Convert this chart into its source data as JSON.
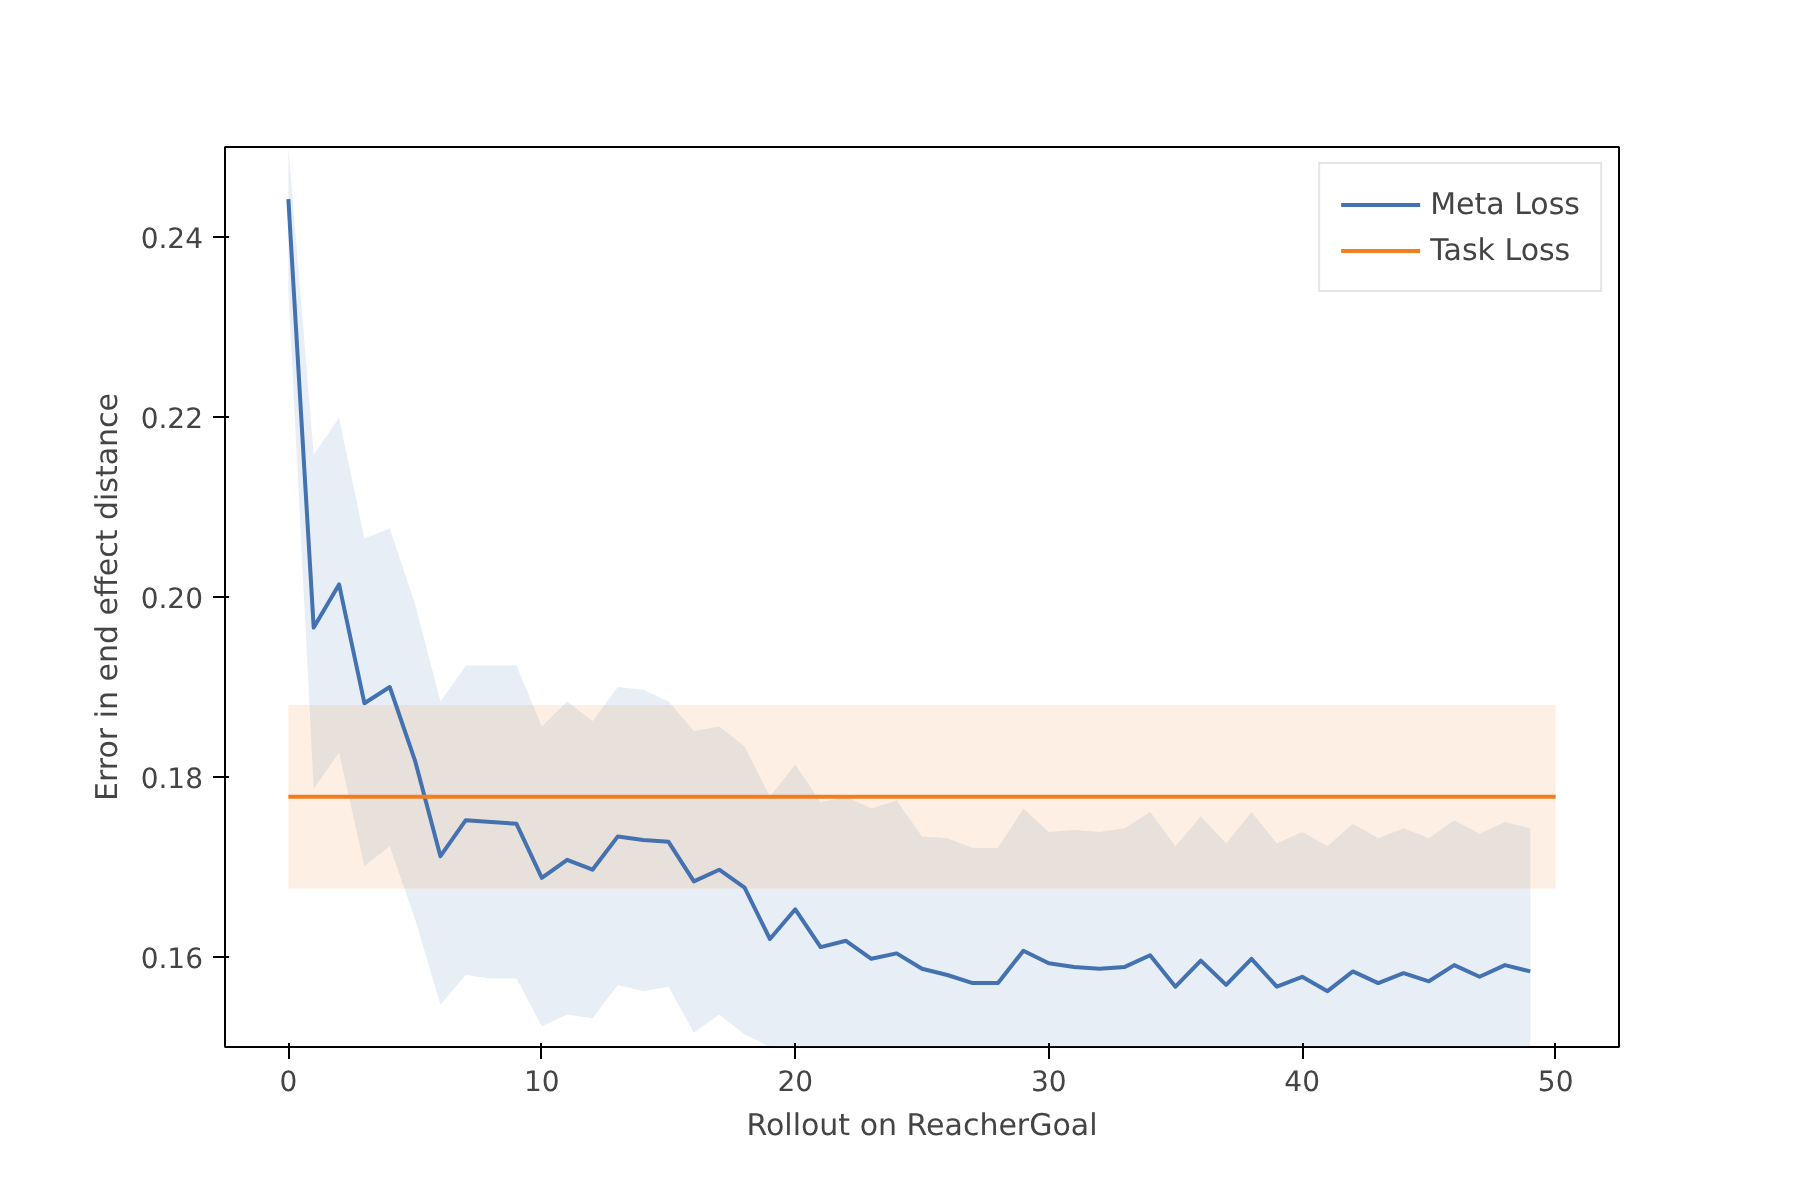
{
  "chart_data": {
    "type": "line",
    "xlabel": "Rollout on ReacherGoal",
    "ylabel": "Error in end effect distance",
    "xlim": [
      -2.5,
      52.5
    ],
    "xticks": [
      0,
      10,
      20,
      30,
      40,
      50
    ],
    "ylim": [
      0.15,
      0.25
    ],
    "yticks": [
      0.16,
      0.18,
      {
        "value": 0.2,
        "label": "0.20"
      },
      0.22,
      0.24
    ],
    "grid": false,
    "legend": "top right",
    "line_style": "solid",
    "marker": "none",
    "series": [
      {
        "name": "Meta Loss",
        "color": "#4471b0",
        "x": [
          0,
          1,
          2,
          3,
          4,
          5,
          6,
          7,
          8,
          9,
          10,
          11,
          12,
          13,
          14,
          15,
          16,
          17,
          18,
          19,
          20,
          21,
          22,
          23,
          24,
          25,
          26,
          27,
          28,
          29,
          30,
          31,
          32,
          33,
          34,
          35,
          36,
          37,
          38,
          39,
          40,
          41,
          42,
          43,
          44,
          45,
          46,
          47,
          48,
          49
        ],
        "values": [
          0.2442,
          0.1966,
          0.2014,
          0.1882,
          0.19,
          0.1818,
          0.1712,
          0.1752,
          0.175,
          0.1748,
          0.1688,
          0.1708,
          0.1697,
          0.1734,
          0.173,
          0.1728,
          0.1684,
          0.1697,
          0.1677,
          0.162,
          0.1653,
          0.1611,
          0.1618,
          0.1598,
          0.1604,
          0.1587,
          0.158,
          0.1571,
          0.1571,
          0.1607,
          0.1593,
          0.1589,
          0.1587,
          0.1589,
          0.1602,
          0.1567,
          0.1596,
          0.1569,
          0.1598,
          0.1567,
          0.1578,
          0.1562,
          0.1584,
          0.1571,
          0.1582,
          0.1573,
          0.1591,
          0.1578,
          0.1591,
          0.1584
        ],
        "upper": [
          0.25,
          0.2158,
          0.2199,
          0.2065,
          0.2076,
          0.1992,
          0.1884,
          0.1924,
          0.1924,
          0.1924,
          0.1856,
          0.1884,
          0.1862,
          0.19,
          0.1897,
          0.1884,
          0.1851,
          0.1856,
          0.1834,
          0.1778,
          0.1814,
          0.1772,
          0.1778,
          0.1765,
          0.1774,
          0.1734,
          0.1732,
          0.1721,
          0.1721,
          0.1765,
          0.1739,
          0.1741,
          0.1739,
          0.1743,
          0.1761,
          0.1723,
          0.1756,
          0.1726,
          0.1761,
          0.1726,
          0.1739,
          0.1723,
          0.1748,
          0.1732,
          0.1743,
          0.1732,
          0.1752,
          0.1737,
          0.175,
          0.1743
        ],
        "lower": [
          0.234,
          0.1787,
          0.1827,
          0.1701,
          0.1723,
          0.1642,
          0.1547,
          0.158,
          0.1576,
          0.1576,
          0.1523,
          0.1536,
          0.1532,
          0.1569,
          0.1562,
          0.1567,
          0.1516,
          0.1536,
          0.1514,
          0.15,
          0.15,
          0.15,
          0.15,
          0.15,
          0.15,
          0.15,
          0.15,
          0.15,
          0.15,
          0.15,
          0.15,
          0.15,
          0.15,
          0.15,
          0.15,
          0.15,
          0.15,
          0.15,
          0.15,
          0.15,
          0.15,
          0.15,
          0.15,
          0.15,
          0.15,
          0.15,
          0.15,
          0.15,
          0.15,
          0.15
        ]
      },
      {
        "name": "Task Loss",
        "color": "#f07e1e",
        "x": [
          0,
          50
        ],
        "values": [
          0.1778,
          0.1778
        ],
        "upper": [
          0.188,
          0.188
        ],
        "lower": [
          0.1676,
          0.1676
        ]
      }
    ]
  }
}
